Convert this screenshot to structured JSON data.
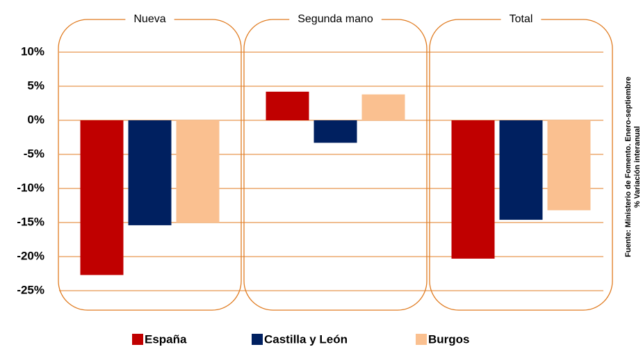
{
  "chart_data": {
    "type": "bar",
    "categories": [
      "Nueva",
      "Segunda mano",
      "Total"
    ],
    "series": [
      {
        "name": "España",
        "color": "#c00000",
        "values": [
          -22.7,
          4.2,
          -20.3
        ]
      },
      {
        "name": "Castilla y León",
        "color": "#002060",
        "values": [
          -15.4,
          -3.3,
          -14.6
        ]
      },
      {
        "name": "Burgos",
        "color": "#fac090",
        "values": [
          -15,
          3.8,
          -13.2
        ]
      }
    ],
    "ylim": [
      -25,
      10
    ],
    "yticks": [
      {
        "value": -25,
        "label": "-25%"
      },
      {
        "value": -20,
        "label": "-20%"
      },
      {
        "value": -15,
        "label": "-15%"
      },
      {
        "value": -10,
        "label": "-10%"
      },
      {
        "value": -5,
        "label": "-5%"
      },
      {
        "value": 0,
        "label": "0%"
      },
      {
        "value": 5,
        "label": "5%"
      },
      {
        "value": 10,
        "label": "10%"
      }
    ],
    "grid": true,
    "source": "Fuente: Ministerio de Fomento. Enero-septiembre",
    "note": "% Variación interanual"
  }
}
